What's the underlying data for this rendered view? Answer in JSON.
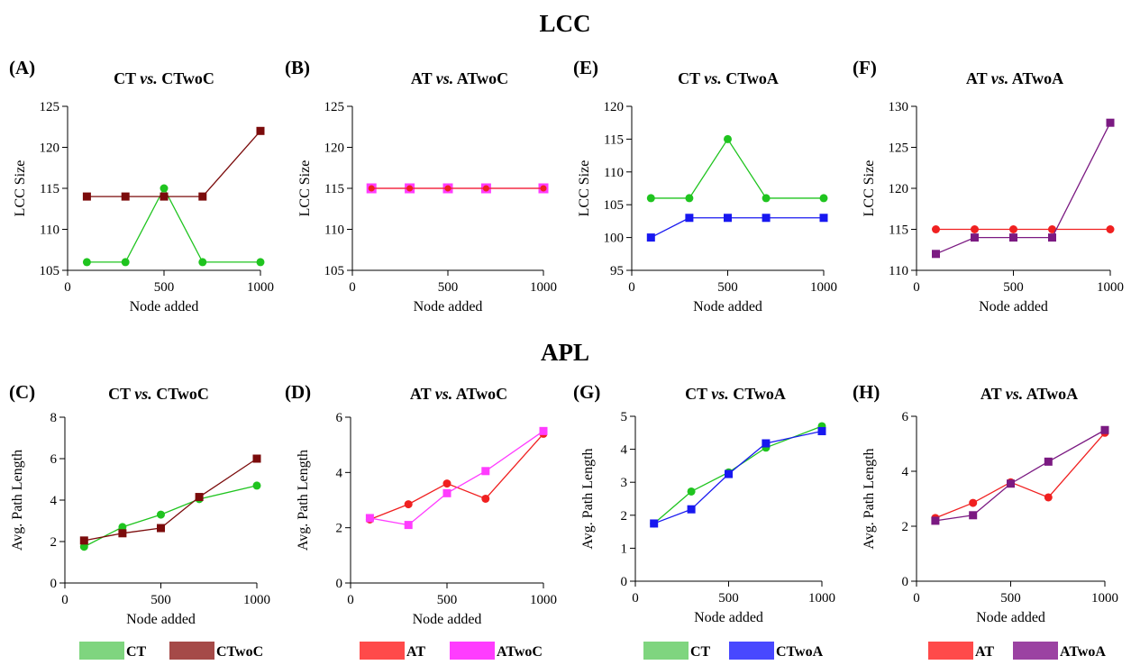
{
  "sections": [
    {
      "id": "lcc",
      "title": "LCC"
    },
    {
      "id": "apl",
      "title": "APL"
    }
  ],
  "colors": {
    "CT": "#1fc41f",
    "CTwoC": "#7b0b0b",
    "AT": "#f02020",
    "ATwoC": "#ff3cff",
    "CTwoA": "#1818f0",
    "ATwoA": "#7b1a82",
    "legend_CT": "#7fd57f",
    "legend_CTwoC": "#a54a48",
    "legend_AT": "#ff4a4a",
    "legend_ATwoC": "#ff3cff",
    "legend_CTwoA": "#4848ff",
    "legend_ATwoA": "#9b42a2"
  },
  "chart_data": [
    {
      "panel": "A",
      "letter": "(A)",
      "type": "line",
      "title_left": "CT",
      "title_vs": "vs.",
      "title_right": "CTwoC",
      "xlabel": "Node added",
      "ylabel": "LCC Size",
      "xlim": [
        0,
        1000
      ],
      "ylim": [
        105,
        125
      ],
      "xticks": [
        0,
        500,
        1000
      ],
      "yticks": [
        105,
        110,
        115,
        120,
        125
      ],
      "x": [
        100,
        300,
        500,
        700,
        1000
      ],
      "series": [
        {
          "name": "CT",
          "color_key": "CT",
          "marker": "circle",
          "values": [
            106,
            106,
            115,
            106,
            106
          ]
        },
        {
          "name": "CTwoC",
          "color_key": "CTwoC",
          "marker": "square",
          "values": [
            114,
            114,
            114,
            114,
            122
          ]
        }
      ]
    },
    {
      "panel": "B",
      "letter": "(B)",
      "type": "line",
      "title_left": "AT",
      "title_vs": "vs.",
      "title_right": "ATwoC",
      "xlabel": "Node added",
      "ylabel": "LCC Size",
      "xlim": [
        0,
        1000
      ],
      "ylim": [
        105,
        125
      ],
      "xticks": [
        0,
        500,
        1000
      ],
      "yticks": [
        105,
        110,
        115,
        120,
        125
      ],
      "x": [
        100,
        300,
        500,
        700,
        1000
      ],
      "series": [
        {
          "name": "ATwoC",
          "color_key": "ATwoC",
          "marker": "square",
          "values": [
            115,
            115,
            115,
            115,
            115
          ]
        },
        {
          "name": "AT",
          "color_key": "AT",
          "marker": "circle",
          "values": [
            115,
            115,
            115,
            115,
            115
          ]
        }
      ]
    },
    {
      "panel": "E",
      "letter": "(E)",
      "type": "line",
      "title_left": "CT",
      "title_vs": "vs.",
      "title_right": "CTwoA",
      "xlabel": "Node added",
      "ylabel": "LCC Size",
      "xlim": [
        0,
        1000
      ],
      "ylim": [
        95,
        120
      ],
      "xticks": [
        0,
        500,
        1000
      ],
      "yticks": [
        95,
        100,
        105,
        110,
        115,
        120
      ],
      "x": [
        100,
        300,
        500,
        700,
        1000
      ],
      "series": [
        {
          "name": "CT",
          "color_key": "CT",
          "marker": "circle",
          "values": [
            106,
            106,
            115,
            106,
            106
          ]
        },
        {
          "name": "CTwoA",
          "color_key": "CTwoA",
          "marker": "square",
          "values": [
            100,
            103,
            103,
            103,
            103
          ]
        }
      ]
    },
    {
      "panel": "F",
      "letter": "(F)",
      "type": "line",
      "title_left": "AT",
      "title_vs": "vs.",
      "title_right": "ATwoA",
      "xlabel": "Node added",
      "ylabel": "LCC Size",
      "xlim": [
        0,
        1000
      ],
      "ylim": [
        110,
        130
      ],
      "xticks": [
        0,
        500,
        1000
      ],
      "yticks": [
        110,
        115,
        120,
        125,
        130
      ],
      "x": [
        100,
        300,
        500,
        700,
        1000
      ],
      "series": [
        {
          "name": "AT",
          "color_key": "AT",
          "marker": "circle",
          "values": [
            115,
            115,
            115,
            115,
            115
          ]
        },
        {
          "name": "ATwoA",
          "color_key": "ATwoA",
          "marker": "square",
          "values": [
            112,
            114,
            114,
            114,
            128
          ]
        }
      ]
    },
    {
      "panel": "C",
      "letter": "(C)",
      "type": "line",
      "title_left": "CT",
      "title_vs": "vs.",
      "title_right": "CTwoC",
      "xlabel": "Node added",
      "ylabel": "Avg. Path Length",
      "xlim": [
        0,
        1000
      ],
      "ylim": [
        0,
        8
      ],
      "xticks": [
        0,
        500,
        1000
      ],
      "yticks": [
        0,
        2,
        4,
        6,
        8
      ],
      "x": [
        100,
        300,
        500,
        700,
        1000
      ],
      "series": [
        {
          "name": "CT",
          "color_key": "CT",
          "marker": "circle",
          "values": [
            1.75,
            2.7,
            3.3,
            4.05,
            4.7
          ]
        },
        {
          "name": "CTwoC",
          "color_key": "CTwoC",
          "marker": "square",
          "values": [
            2.05,
            2.4,
            2.65,
            4.15,
            6.0
          ]
        }
      ],
      "legend": [
        {
          "label": "CT",
          "swatch_key": "legend_CT"
        },
        {
          "label": "CTwoC",
          "swatch_key": "legend_CTwoC"
        }
      ]
    },
    {
      "panel": "D",
      "letter": "(D)",
      "type": "line",
      "title_left": "AT",
      "title_vs": "vs.",
      "title_right": "ATwoC",
      "xlabel": "Node added",
      "ylabel": "Avg. Path Length",
      "xlim": [
        0,
        1000
      ],
      "ylim": [
        0,
        6
      ],
      "xticks": [
        0,
        500,
        1000
      ],
      "yticks": [
        0,
        2,
        4,
        6
      ],
      "x": [
        100,
        300,
        500,
        700,
        1000
      ],
      "series": [
        {
          "name": "AT",
          "color_key": "AT",
          "marker": "circle",
          "values": [
            2.3,
            2.85,
            3.6,
            3.05,
            5.4
          ]
        },
        {
          "name": "ATwoC",
          "color_key": "ATwoC",
          "marker": "square",
          "values": [
            2.35,
            2.1,
            3.25,
            4.05,
            5.5
          ]
        }
      ],
      "legend": [
        {
          "label": "AT",
          "swatch_key": "legend_AT"
        },
        {
          "label": "ATwoC",
          "swatch_key": "legend_ATwoC"
        }
      ]
    },
    {
      "panel": "G",
      "letter": "(G)",
      "type": "line",
      "title_left": "CT",
      "title_vs": "vs.",
      "title_right": "CTwoA",
      "xlabel": "Node added",
      "ylabel": "Avg. Path Length",
      "xlim": [
        0,
        1000
      ],
      "ylim": [
        0,
        5
      ],
      "xticks": [
        0,
        500,
        1000
      ],
      "yticks": [
        0,
        1,
        2,
        3,
        4,
        5
      ],
      "x": [
        100,
        300,
        500,
        700,
        1000
      ],
      "series": [
        {
          "name": "CT",
          "color_key": "CT",
          "marker": "circle",
          "values": [
            1.75,
            2.72,
            3.3,
            4.05,
            4.7
          ]
        },
        {
          "name": "CTwoA",
          "color_key": "CTwoA",
          "marker": "square",
          "values": [
            1.75,
            2.18,
            3.25,
            4.18,
            4.55
          ]
        }
      ],
      "legend": [
        {
          "label": "CT",
          "swatch_key": "legend_CT"
        },
        {
          "label": "CTwoA",
          "swatch_key": "legend_CTwoA"
        }
      ]
    },
    {
      "panel": "H",
      "letter": "(H)",
      "type": "line",
      "title_left": "AT",
      "title_vs": "vs.",
      "title_right": "ATwoA",
      "xlabel": "Node added",
      "ylabel": "Avg. Path Length",
      "xlim": [
        0,
        1000
      ],
      "ylim": [
        0,
        6
      ],
      "xticks": [
        0,
        500,
        1000
      ],
      "yticks": [
        0,
        2,
        4,
        6
      ],
      "x": [
        100,
        300,
        500,
        700,
        1000
      ],
      "series": [
        {
          "name": "AT",
          "color_key": "AT",
          "marker": "circle",
          "values": [
            2.3,
            2.85,
            3.6,
            3.05,
            5.4
          ]
        },
        {
          "name": "ATwoA",
          "color_key": "ATwoA",
          "marker": "square",
          "values": [
            2.2,
            2.4,
            3.55,
            4.35,
            5.5
          ]
        }
      ],
      "legend": [
        {
          "label": "AT",
          "swatch_key": "legend_AT"
        },
        {
          "label": "ATwoA",
          "swatch_key": "legend_ATwoA"
        }
      ]
    }
  ]
}
